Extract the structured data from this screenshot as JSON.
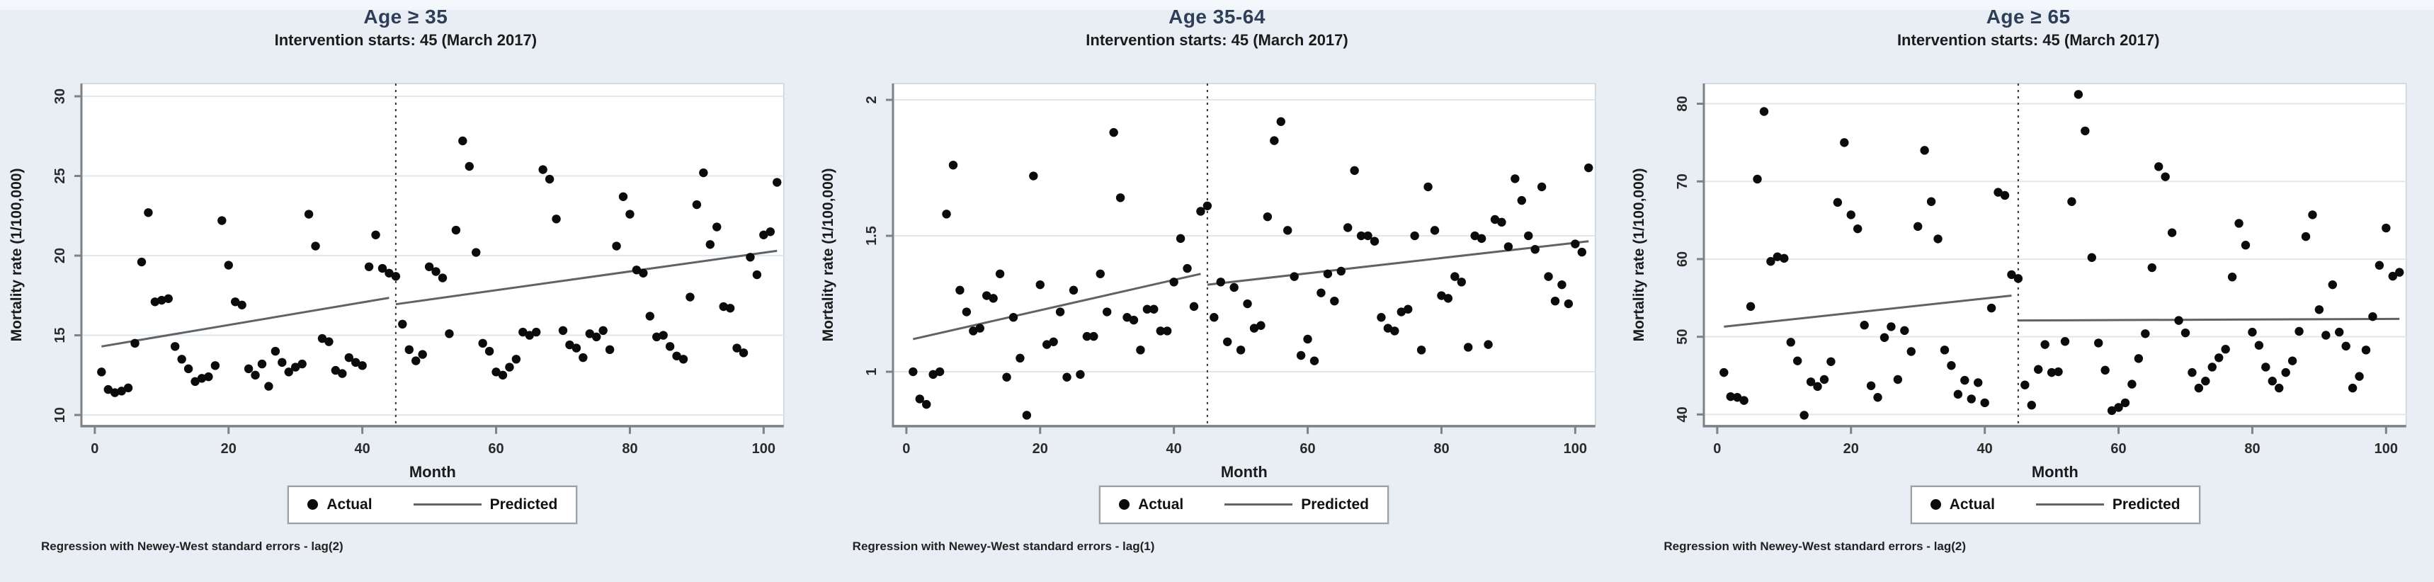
{
  "figure": {
    "kind": "interrupted-time-series figure, 3 panels (Stata style)",
    "xlabel": "Month",
    "ylabel": "Mortality rate (1/100,000)",
    "legend": {
      "actual_label": "Actual",
      "predicted_label": "Predicted"
    },
    "colors": {
      "background": "#e8eef4",
      "top_strip": "#f3f6fa",
      "plot_bg": "#ffffff",
      "plot_border": "#c9d3dc",
      "grid": "#dfe8ef",
      "axis": "#7d8287",
      "point": "#0b0b0b",
      "predicted_line": "#5f6368",
      "dashed_line": "#2f2f2f",
      "tick_text": "#2b2b2b",
      "title": "#2f3e58"
    }
  },
  "chart_data": [
    {
      "type": "scatter",
      "title": "Age ≥ 35",
      "subtitle": "Intervention starts: 45 (March 2017)",
      "note": "Regression with Newey-West standard errors - lag(2)",
      "xlabel": "Month",
      "ylabel": "Mortality rate (1/100,000)",
      "intervention_x": 45,
      "xlim": [
        -2,
        103
      ],
      "ylim": [
        9.3,
        30.8
      ],
      "xticks": [
        0,
        20,
        40,
        60,
        80,
        100
      ],
      "yticks": [
        10,
        15,
        20,
        25,
        30
      ],
      "grid": "horizontal",
      "legend_position": "bottom",
      "x_rule": "Actual series: month = array index + 1 (months 1-102)",
      "series": [
        {
          "name": "Actual",
          "marker": "filled-circle",
          "y": [
            12.7,
            11.6,
            11.4,
            11.5,
            11.7,
            14.5,
            19.6,
            22.7,
            17.1,
            17.2,
            17.3,
            14.3,
            13.5,
            12.9,
            12.1,
            12.3,
            12.4,
            13.1,
            22.2,
            19.4,
            17.1,
            16.9,
            12.9,
            12.5,
            13.2,
            11.8,
            14.0,
            13.3,
            12.7,
            13.0,
            13.2,
            22.6,
            20.6,
            14.8,
            14.6,
            12.8,
            12.6,
            13.6,
            13.3,
            13.1,
            19.3,
            21.3,
            19.2,
            18.9,
            18.7,
            15.7,
            14.1,
            13.4,
            13.8,
            19.3,
            19.0,
            18.6,
            15.1,
            21.6,
            27.2,
            25.6,
            20.2,
            14.5,
            14.0,
            12.7,
            12.5,
            13.0,
            13.5,
            15.2,
            15.0,
            15.2,
            25.4,
            24.8,
            22.3,
            15.3,
            14.4,
            14.2,
            13.6,
            15.1,
            14.9,
            15.3,
            14.1,
            20.6,
            23.7,
            22.6,
            19.1,
            18.9,
            16.2,
            14.9,
            15.0,
            14.3,
            13.7,
            13.5,
            17.4,
            23.2,
            25.2,
            20.7,
            21.8,
            16.8,
            16.7,
            14.2,
            13.9,
            19.9,
            18.8,
            21.3,
            21.5,
            24.6
          ]
        },
        {
          "name": "Predicted",
          "type": "line",
          "segments": [
            {
              "x": [
                1,
                44
              ],
              "y": [
                14.3,
                17.35
              ]
            },
            {
              "x": [
                45,
                102
              ],
              "y": [
                16.95,
                20.3
              ]
            }
          ]
        }
      ]
    },
    {
      "type": "scatter",
      "title": "Age 35-64",
      "subtitle": "Intervention starts: 45 (March 2017)",
      "note": "Regression with Newey-West standard errors - lag(1)",
      "xlabel": "Month",
      "ylabel": "Mortality rate (1/100,000)",
      "intervention_x": 45,
      "xlim": [
        -2,
        103
      ],
      "ylim": [
        0.8,
        2.06
      ],
      "xticks": [
        0,
        20,
        40,
        60,
        80,
        100
      ],
      "yticks": [
        1,
        1.5,
        2
      ],
      "grid": "horizontal",
      "legend_position": "bottom",
      "x_rule": "Actual series: month = array index + 1 (months 1-102)",
      "series": [
        {
          "name": "Actual",
          "marker": "filled-circle",
          "y": [
            1.0,
            0.9,
            0.88,
            0.99,
            1.0,
            1.58,
            1.76,
            1.3,
            1.22,
            1.15,
            1.16,
            1.28,
            1.27,
            1.36,
            0.98,
            1.2,
            1.05,
            0.84,
            1.72,
            1.32,
            1.1,
            1.11,
            1.22,
            0.98,
            1.3,
            0.99,
            1.13,
            1.13,
            1.36,
            1.22,
            1.88,
            1.64,
            1.2,
            1.19,
            1.08,
            1.23,
            1.23,
            1.15,
            1.15,
            1.33,
            1.49,
            1.38,
            1.24,
            1.59,
            1.61,
            1.2,
            1.33,
            1.11,
            1.31,
            1.08,
            1.25,
            1.16,
            1.17,
            1.57,
            1.85,
            1.92,
            1.52,
            1.35,
            1.06,
            1.12,
            1.04,
            1.29,
            1.36,
            1.26,
            1.37,
            1.53,
            1.74,
            1.5,
            1.5,
            1.48,
            1.2,
            1.16,
            1.15,
            1.22,
            1.23,
            1.5,
            1.08,
            1.68,
            1.52,
            1.28,
            1.27,
            1.35,
            1.33,
            1.09,
            1.5,
            1.49,
            1.1,
            1.56,
            1.55,
            1.46,
            1.71,
            1.63,
            1.5,
            1.45,
            1.68,
            1.35,
            1.26,
            1.32,
            1.25,
            1.47,
            1.44,
            1.75
          ]
        },
        {
          "name": "Predicted",
          "type": "line",
          "segments": [
            {
              "x": [
                1,
                44
              ],
              "y": [
                1.12,
                1.36
              ]
            },
            {
              "x": [
                45,
                102
              ],
              "y": [
                1.32,
                1.48
              ]
            }
          ]
        }
      ]
    },
    {
      "type": "scatter",
      "title": "Age ≥ 65",
      "subtitle": "Intervention starts: 45 (March 2017)",
      "note": "Regression with Newey-West standard errors - lag(2)",
      "xlabel": "Month",
      "ylabel": "Mortality rate (1/100,000)",
      "intervention_x": 45,
      "xlim": [
        -2,
        103
      ],
      "ylim": [
        38.5,
        82.6
      ],
      "xticks": [
        0,
        20,
        40,
        60,
        80,
        100
      ],
      "yticks": [
        40,
        50,
        60,
        70,
        80
      ],
      "grid": "horizontal",
      "legend_position": "bottom",
      "x_rule": "Actual series: month = array index + 1 (months 1-102)",
      "series": [
        {
          "name": "Actual",
          "marker": "filled-circle",
          "y": [
            45.4,
            42.3,
            42.2,
            41.8,
            53.9,
            70.3,
            79.0,
            59.7,
            60.3,
            60.1,
            49.3,
            46.9,
            39.9,
            44.2,
            43.6,
            44.5,
            46.8,
            67.3,
            75.0,
            65.7,
            63.9,
            51.5,
            43.7,
            42.2,
            49.9,
            51.3,
            44.5,
            50.8,
            48.1,
            64.2,
            74.0,
            67.4,
            62.6,
            48.3,
            46.3,
            42.6,
            44.4,
            42.0,
            44.1,
            41.5,
            53.7,
            68.6,
            68.2,
            58.0,
            57.5,
            43.8,
            41.2,
            45.8,
            49.0,
            45.4,
            45.5,
            49.4,
            67.4,
            81.2,
            76.5,
            60.2,
            49.2,
            45.7,
            40.5,
            40.9,
            41.5,
            43.9,
            47.2,
            50.4,
            58.9,
            71.9,
            70.6,
            63.4,
            52.1,
            50.5,
            45.4,
            43.4,
            44.3,
            46.1,
            47.3,
            48.4,
            57.7,
            64.6,
            61.8,
            50.6,
            48.9,
            46.1,
            44.3,
            43.4,
            45.4,
            46.9,
            50.7,
            62.9,
            65.7,
            53.5,
            50.2,
            56.7,
            50.6,
            48.8,
            43.4,
            44.9,
            48.3,
            52.6,
            59.2,
            64.0,
            57.8,
            58.3
          ]
        },
        {
          "name": "Predicted",
          "type": "line",
          "segments": [
            {
              "x": [
                1,
                44
              ],
              "y": [
                51.3,
                55.3
              ]
            },
            {
              "x": [
                45,
                102
              ],
              "y": [
                52.1,
                52.3
              ]
            }
          ]
        }
      ]
    }
  ]
}
